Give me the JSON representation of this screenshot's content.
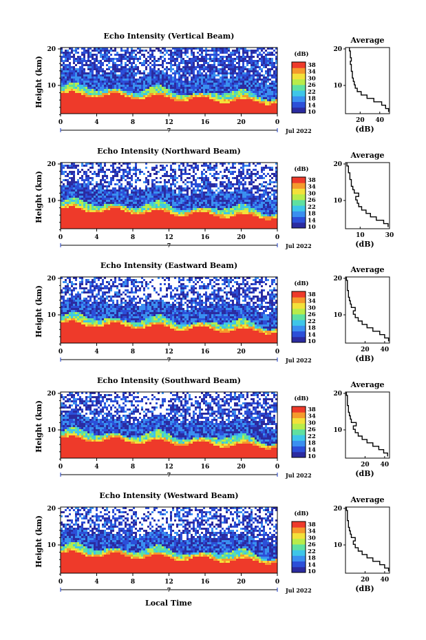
{
  "chart_data": [
    {
      "type": "heatmap",
      "title": "Echo Intensity (Vertical Beam)",
      "ylabel": "Height (km)",
      "x_ticks": [
        "0",
        "4",
        "8",
        "12",
        "16",
        "20",
        "0"
      ],
      "y_ticks": [
        "20",
        "10"
      ],
      "date_label": "Jul 2022",
      "day_label": "7",
      "colorbar_label": "(dB)",
      "colorbar_ticks": [
        "38",
        "34",
        "30",
        "26",
        "22",
        "18",
        "14",
        "10"
      ],
      "profile": {
        "title": "Average",
        "xlabel": "(dB)",
        "x_ticks": [
          "20",
          "40"
        ],
        "xlim": [
          5,
          50
        ],
        "y_ticks": [
          "20",
          "10"
        ],
        "height_km": [
          2,
          3,
          4,
          5,
          6,
          7,
          8,
          9,
          10,
          11,
          12,
          13,
          14,
          15,
          16,
          17,
          18,
          19,
          20
        ],
        "intensity_db": [
          49,
          46,
          42,
          34,
          27,
          21,
          17,
          15,
          14,
          13,
          12,
          12,
          11,
          11,
          10,
          11,
          10,
          10,
          9
        ]
      }
    },
    {
      "type": "heatmap",
      "title": "Echo Intensity (Northward Beam)",
      "ylabel": "Height (km)",
      "x_ticks": [
        "0",
        "4",
        "8",
        "12",
        "16",
        "20",
        "0"
      ],
      "y_ticks": [
        "20",
        "10"
      ],
      "date_label": "Jul 2022",
      "day_label": "7",
      "colorbar_label": "(dB)",
      "colorbar_ticks": [
        "38",
        "34",
        "30",
        "26",
        "22",
        "18",
        "14",
        "10"
      ],
      "profile": {
        "title": "Average",
        "xlabel": "(dB)",
        "x_ticks": [
          "10",
          "30"
        ],
        "xlim": [
          0,
          30
        ],
        "height_km": [
          2,
          3,
          4,
          5,
          6,
          7,
          8,
          9,
          10,
          11,
          12,
          13,
          14,
          15,
          16,
          17,
          18,
          19,
          20
        ],
        "intensity_db": [
          29,
          26,
          21,
          17,
          14,
          11,
          9,
          8,
          7,
          9,
          6,
          5,
          4,
          4,
          3,
          3,
          2,
          2,
          1
        ]
      }
    },
    {
      "type": "heatmap",
      "title": "Echo Intensity (Eastward Beam)",
      "ylabel": "Height (km)",
      "x_ticks": [
        "0",
        "4",
        "8",
        "12",
        "16",
        "20",
        "0"
      ],
      "y_ticks": [
        "20",
        "10"
      ],
      "date_label": "Jul 2022",
      "day_label": "7",
      "colorbar_label": "(dB)",
      "colorbar_ticks": [
        "38",
        "34",
        "30",
        "26",
        "22",
        "18",
        "14",
        "10"
      ],
      "profile": {
        "title": "Average",
        "xlabel": "(dB)",
        "x_ticks": [
          "20",
          "40"
        ],
        "xlim": [
          0,
          45
        ],
        "height_km": [
          2,
          3,
          4,
          5,
          6,
          7,
          8,
          9,
          10,
          11,
          12,
          13,
          14,
          15,
          16,
          17,
          18,
          19,
          20
        ],
        "intensity_db": [
          44,
          40,
          35,
          28,
          22,
          17,
          13,
          10,
          8,
          10,
          6,
          5,
          4,
          3,
          3,
          2,
          2,
          2,
          1
        ]
      }
    },
    {
      "type": "heatmap",
      "title": "Echo Intensity (Southward Beam)",
      "ylabel": "Height (km)",
      "x_ticks": [
        "0",
        "4",
        "8",
        "12",
        "16",
        "20",
        "0"
      ],
      "y_ticks": [
        "20",
        "10"
      ],
      "date_label": "Jul 2022",
      "day_label": "7",
      "colorbar_label": "(dB)",
      "colorbar_ticks": [
        "38",
        "34",
        "30",
        "26",
        "22",
        "18",
        "14",
        "10"
      ],
      "profile": {
        "title": "Average",
        "xlabel": "(dB)",
        "x_ticks": [
          "20",
          "40"
        ],
        "xlim": [
          0,
          45
        ],
        "height_km": [
          2,
          3,
          4,
          5,
          6,
          7,
          8,
          9,
          10,
          11,
          12,
          13,
          14,
          15,
          16,
          17,
          18,
          19,
          20
        ],
        "intensity_db": [
          43,
          39,
          34,
          28,
          22,
          17,
          13,
          10,
          8,
          11,
          6,
          5,
          4,
          3,
          3,
          2,
          2,
          2,
          1
        ]
      }
    },
    {
      "type": "heatmap",
      "title": "Echo Intensity (Westward Beam)",
      "ylabel": "Height (km)",
      "x_ticks": [
        "0",
        "4",
        "8",
        "12",
        "16",
        "20",
        "0"
      ],
      "y_ticks": [
        "20",
        "10"
      ],
      "date_label": "Jul 2022",
      "day_label": "7",
      "colorbar_label": "(dB)",
      "colorbar_ticks": [
        "38",
        "34",
        "30",
        "26",
        "22",
        "18",
        "14",
        "10"
      ],
      "profile": {
        "title": "Average",
        "xlabel": "(dB)",
        "x_ticks": [
          "20",
          "40"
        ],
        "xlim": [
          0,
          45
        ],
        "height_km": [
          2,
          3,
          4,
          5,
          6,
          7,
          8,
          9,
          10,
          11,
          12,
          13,
          14,
          15,
          16,
          17,
          18,
          19,
          20
        ],
        "intensity_db": [
          44,
          40,
          35,
          28,
          22,
          17,
          13,
          10,
          8,
          10,
          6,
          5,
          4,
          3,
          3,
          2,
          2,
          2,
          1
        ]
      }
    }
  ],
  "xlabel": "Local Time",
  "colorscale": [
    "#2b2ba0",
    "#2c4fd8",
    "#3a8ff0",
    "#3ec6e8",
    "#5fe0a0",
    "#b8ec4a",
    "#f3e13a",
    "#f59a2c",
    "#ee3a2a"
  ],
  "background_color": "#ef3b2c",
  "empty_color": "#ffffff"
}
